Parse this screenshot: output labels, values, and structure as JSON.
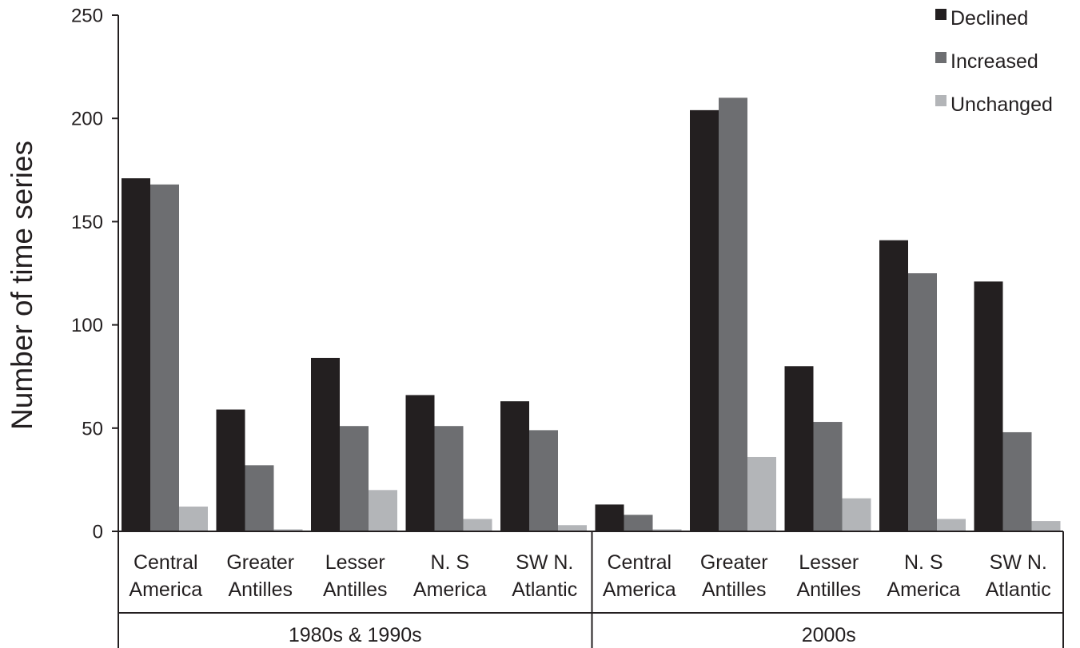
{
  "chart_data": {
    "type": "bar",
    "ylabel": "Number of time series",
    "xlabel": "",
    "ylim": [
      0,
      250
    ],
    "yticks": [
      0,
      50,
      100,
      150,
      200,
      250
    ],
    "grid": false,
    "legend_position": "top-right",
    "groups": [
      {
        "label": "1980s & 1990s",
        "categories": [
          "Central America",
          "Greater Antilles",
          "Lesser Antilles",
          "N. S America",
          "SW N. Atlantic"
        ]
      },
      {
        "label": "2000s",
        "categories": [
          "Central America",
          "Greater Antilles",
          "Lesser Antilles",
          "N. S America",
          "SW N. Atlantic"
        ]
      }
    ],
    "category_lines": [
      [
        "Central",
        "America"
      ],
      [
        "Greater",
        "Antilles"
      ],
      [
        "Lesser",
        "Antilles"
      ],
      [
        "N. S",
        "America"
      ],
      [
        "SW N.",
        "Atlantic"
      ],
      [
        "Central",
        "America"
      ],
      [
        "Greater",
        "Antilles"
      ],
      [
        "Lesser",
        "Antilles"
      ],
      [
        "N. S",
        "America"
      ],
      [
        "SW N.",
        "Atlantic"
      ]
    ],
    "series": [
      {
        "name": "Declined",
        "color": "#231f20",
        "values": [
          171,
          59,
          84,
          66,
          63,
          13,
          204,
          80,
          141,
          121
        ]
      },
      {
        "name": "Increased",
        "color": "#6d6e71",
        "values": [
          168,
          32,
          51,
          51,
          49,
          8,
          210,
          53,
          125,
          48
        ]
      },
      {
        "name": "Unchanged",
        "color": "#b3b5b8",
        "values": [
          12,
          1,
          20,
          6,
          3,
          1,
          36,
          16,
          6,
          5
        ]
      }
    ]
  }
}
